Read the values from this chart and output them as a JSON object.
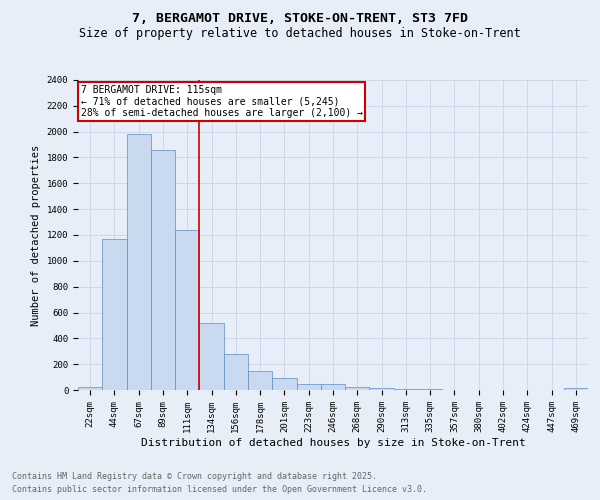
{
  "title1": "7, BERGAMOT DRIVE, STOKE-ON-TRENT, ST3 7FD",
  "title2": "Size of property relative to detached houses in Stoke-on-Trent",
  "xlabel": "Distribution of detached houses by size in Stoke-on-Trent",
  "ylabel": "Number of detached properties",
  "bar_labels": [
    "22sqm",
    "44sqm",
    "67sqm",
    "89sqm",
    "111sqm",
    "134sqm",
    "156sqm",
    "178sqm",
    "201sqm",
    "223sqm",
    "246sqm",
    "268sqm",
    "290sqm",
    "313sqm",
    "335sqm",
    "357sqm",
    "380sqm",
    "402sqm",
    "424sqm",
    "447sqm",
    "469sqm"
  ],
  "bar_values": [
    25,
    1170,
    1980,
    1860,
    1240,
    515,
    275,
    150,
    90,
    45,
    45,
    25,
    15,
    10,
    5,
    3,
    2,
    2,
    1,
    1,
    15
  ],
  "bar_color": "#c9d9f0",
  "bar_edge_color": "#5b8dc8",
  "annotation_line1": "7 BERGAMOT DRIVE: 115sqm",
  "annotation_line2": "← 71% of detached houses are smaller (5,245)",
  "annotation_line3": "28% of semi-detached houses are larger (2,100) →",
  "annotation_box_color": "#ffffff",
  "annotation_box_edge_color": "#cc0000",
  "vline_x": 4.5,
  "vline_color": "#cc0000",
  "ylim": [
    0,
    2400
  ],
  "yticks": [
    0,
    200,
    400,
    600,
    800,
    1000,
    1200,
    1400,
    1600,
    1800,
    2000,
    2200,
    2400
  ],
  "grid_color": "#c8d4e8",
  "background_color": "#e8eef8",
  "footnote1": "Contains HM Land Registry data © Crown copyright and database right 2025.",
  "footnote2": "Contains public sector information licensed under the Open Government Licence v3.0.",
  "title1_fontsize": 9.5,
  "title2_fontsize": 8.5,
  "xlabel_fontsize": 8,
  "ylabel_fontsize": 7.5,
  "tick_fontsize": 6.5,
  "annotation_fontsize": 7,
  "footnote_fontsize": 6
}
